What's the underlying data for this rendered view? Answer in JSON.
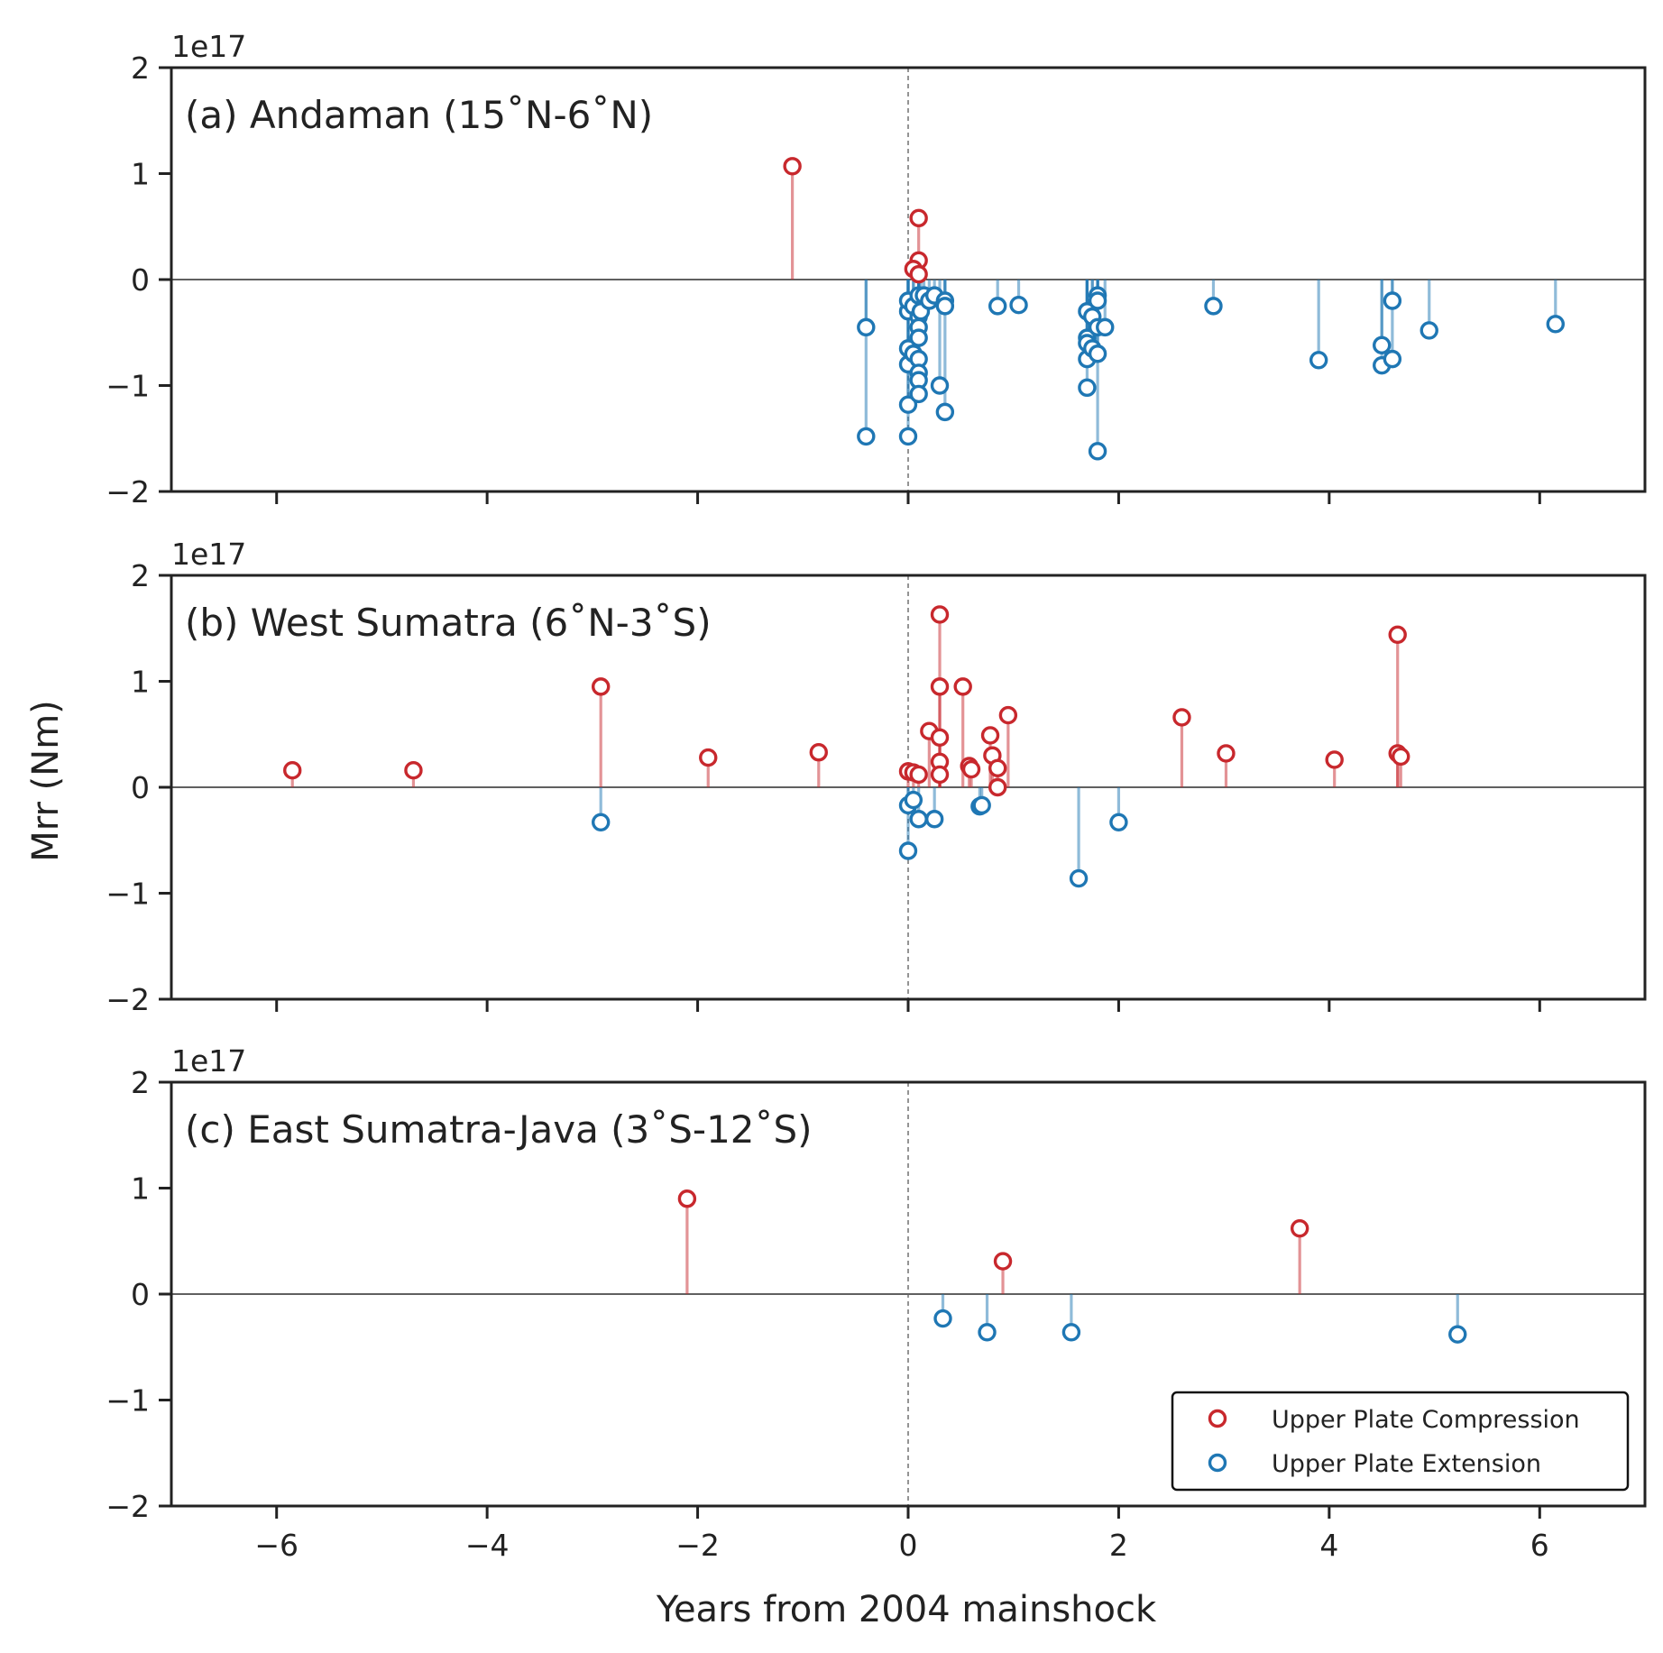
{
  "chart_data": {
    "type": "scatter",
    "style": "stem",
    "xlabel": "Years from 2004 mainshock",
    "ylabel": "Mrr (Nm)",
    "xlim": [
      -7,
      7
    ],
    "ylim": [
      -2,
      2
    ],
    "y_scale_label": "1e17",
    "xticks": [
      -6,
      -4,
      -2,
      0,
      2,
      4,
      6
    ],
    "xtick_labels": [
      "−6",
      "−4",
      "−2",
      "0",
      "2",
      "4",
      "6"
    ],
    "yticks": [
      -2,
      -1,
      0,
      1,
      2
    ],
    "ytick_labels": [
      "−2",
      "−1",
      "0",
      "1",
      "2"
    ],
    "colors": {
      "compression": "#c8282d",
      "extension": "#1f77b4"
    },
    "legend": {
      "position": "lower-right",
      "entries": [
        {
          "label": "Upper Plate Compression",
          "color": "#c8282d"
        },
        {
          "label": "Upper Plate Extension",
          "color": "#1f77b4"
        }
      ]
    },
    "panels": [
      {
        "title": "(a) Andaman (15˚N-6˚N)",
        "compression": [
          [
            -1.1,
            1.07
          ],
          [
            0.1,
            0.58
          ],
          [
            0.1,
            0.18
          ],
          [
            0.05,
            0.1
          ],
          [
            0.1,
            0.05
          ]
        ],
        "extension": [
          [
            -0.4,
            -0.45
          ],
          [
            -0.4,
            -1.48
          ],
          [
            0.0,
            -1.48
          ],
          [
            0.0,
            -1.18
          ],
          [
            0.0,
            -0.8
          ],
          [
            0.0,
            -0.65
          ],
          [
            0.0,
            -0.3
          ],
          [
            0.0,
            -0.2
          ],
          [
            0.05,
            -0.7
          ],
          [
            0.05,
            -0.25
          ],
          [
            0.1,
            -0.15
          ],
          [
            0.1,
            -0.35
          ],
          [
            0.1,
            -0.45
          ],
          [
            0.1,
            -0.55
          ],
          [
            0.1,
            -0.75
          ],
          [
            0.1,
            -0.88
          ],
          [
            0.1,
            -0.95
          ],
          [
            0.1,
            -1.08
          ],
          [
            0.12,
            -0.3
          ],
          [
            0.15,
            -0.15
          ],
          [
            0.2,
            -0.2
          ],
          [
            0.25,
            -0.15
          ],
          [
            0.3,
            -1.0
          ],
          [
            0.35,
            -0.2
          ],
          [
            0.35,
            -0.25
          ],
          [
            0.35,
            -1.25
          ],
          [
            0.85,
            -0.25
          ],
          [
            1.05,
            -0.24
          ],
          [
            1.7,
            -0.3
          ],
          [
            1.7,
            -0.55
          ],
          [
            1.7,
            -0.6
          ],
          [
            1.7,
            -0.75
          ],
          [
            1.7,
            -1.02
          ],
          [
            1.75,
            -0.35
          ],
          [
            1.75,
            -0.65
          ],
          [
            1.8,
            -0.15
          ],
          [
            1.8,
            -0.2
          ],
          [
            1.8,
            -0.45
          ],
          [
            1.8,
            -0.7
          ],
          [
            1.8,
            -1.62
          ],
          [
            1.87,
            -0.45
          ],
          [
            2.9,
            -0.25
          ],
          [
            3.9,
            -0.76
          ],
          [
            4.5,
            -0.62
          ],
          [
            4.5,
            -0.81
          ],
          [
            4.6,
            -0.2
          ],
          [
            4.6,
            -0.75
          ],
          [
            4.95,
            -0.48
          ],
          [
            6.15,
            -0.42
          ]
        ]
      },
      {
        "title": "(b) West Sumatra (6˚N-3˚S)",
        "compression": [
          [
            -5.85,
            0.16
          ],
          [
            -4.7,
            0.16
          ],
          [
            -2.92,
            0.95
          ],
          [
            -1.9,
            0.28
          ],
          [
            -0.85,
            0.33
          ],
          [
            0.0,
            0.15
          ],
          [
            0.05,
            0.14
          ],
          [
            0.1,
            0.12
          ],
          [
            0.2,
            0.53
          ],
          [
            0.3,
            1.63
          ],
          [
            0.3,
            0.95
          ],
          [
            0.3,
            0.47
          ],
          [
            0.3,
            0.24
          ],
          [
            0.3,
            0.12
          ],
          [
            0.52,
            0.95
          ],
          [
            0.58,
            0.2
          ],
          [
            0.6,
            0.17
          ],
          [
            0.78,
            0.49
          ],
          [
            0.8,
            0.3
          ],
          [
            0.85,
            0.0
          ],
          [
            0.85,
            0.18
          ],
          [
            0.95,
            0.68
          ],
          [
            2.6,
            0.66
          ],
          [
            3.02,
            0.32
          ],
          [
            4.05,
            0.26
          ],
          [
            4.65,
            1.44
          ],
          [
            4.65,
            0.32
          ],
          [
            4.68,
            0.29
          ]
        ],
        "extension": [
          [
            -2.92,
            -0.33
          ],
          [
            0.0,
            -0.6
          ],
          [
            0.0,
            -0.17
          ],
          [
            0.05,
            -0.12
          ],
          [
            0.1,
            -0.3
          ],
          [
            0.25,
            -0.3
          ],
          [
            0.68,
            -0.18
          ],
          [
            0.7,
            -0.17
          ],
          [
            1.62,
            -0.86
          ],
          [
            2.0,
            -0.33
          ]
        ]
      },
      {
        "title": "(c) East Sumatra-Java (3˚S-12˚S)",
        "compression": [
          [
            -2.1,
            0.9
          ],
          [
            0.9,
            0.31
          ],
          [
            3.72,
            0.62
          ]
        ],
        "extension": [
          [
            0.33,
            -0.23
          ],
          [
            0.75,
            -0.36
          ],
          [
            1.55,
            -0.36
          ],
          [
            5.22,
            -0.38
          ]
        ]
      }
    ]
  }
}
